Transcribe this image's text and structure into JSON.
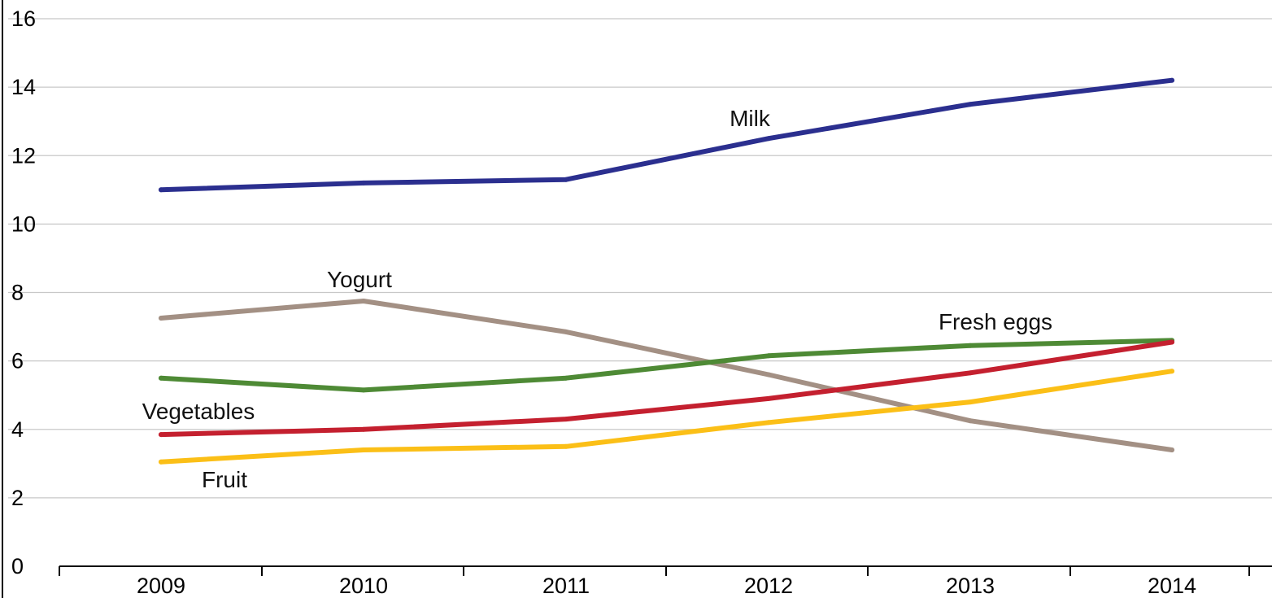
{
  "chart_data": {
    "type": "line",
    "title": "",
    "xlabel": "",
    "ylabel": "",
    "x": [
      "2009",
      "2010",
      "2011",
      "2012",
      "2013",
      "2014"
    ],
    "ylim": [
      0,
      16
    ],
    "yticks": [
      "0",
      "2",
      "4",
      "6",
      "8",
      "10",
      "12",
      "14",
      "16"
    ],
    "grid": true,
    "legend": "none",
    "series": [
      {
        "name": "Milk",
        "color": "#2b2f8f",
        "values": [
          11.0,
          11.2,
          11.3,
          12.5,
          13.5,
          14.2
        ]
      },
      {
        "name": "Yogurt",
        "color": "#a39084",
        "values": [
          7.25,
          7.75,
          6.85,
          5.6,
          4.25,
          3.4
        ]
      },
      {
        "name": "Fresh eggs",
        "color": "#4e8a35",
        "values": [
          5.5,
          5.15,
          5.5,
          6.15,
          6.45,
          6.6
        ]
      },
      {
        "name": "Vegetables",
        "color": "#c4202f",
        "values": [
          3.85,
          4.0,
          4.3,
          4.9,
          5.65,
          6.55
        ]
      },
      {
        "name": "Fruit",
        "color": "#fbbf17",
        "values": [
          3.05,
          3.4,
          3.5,
          4.2,
          4.8,
          5.7
        ]
      }
    ]
  }
}
